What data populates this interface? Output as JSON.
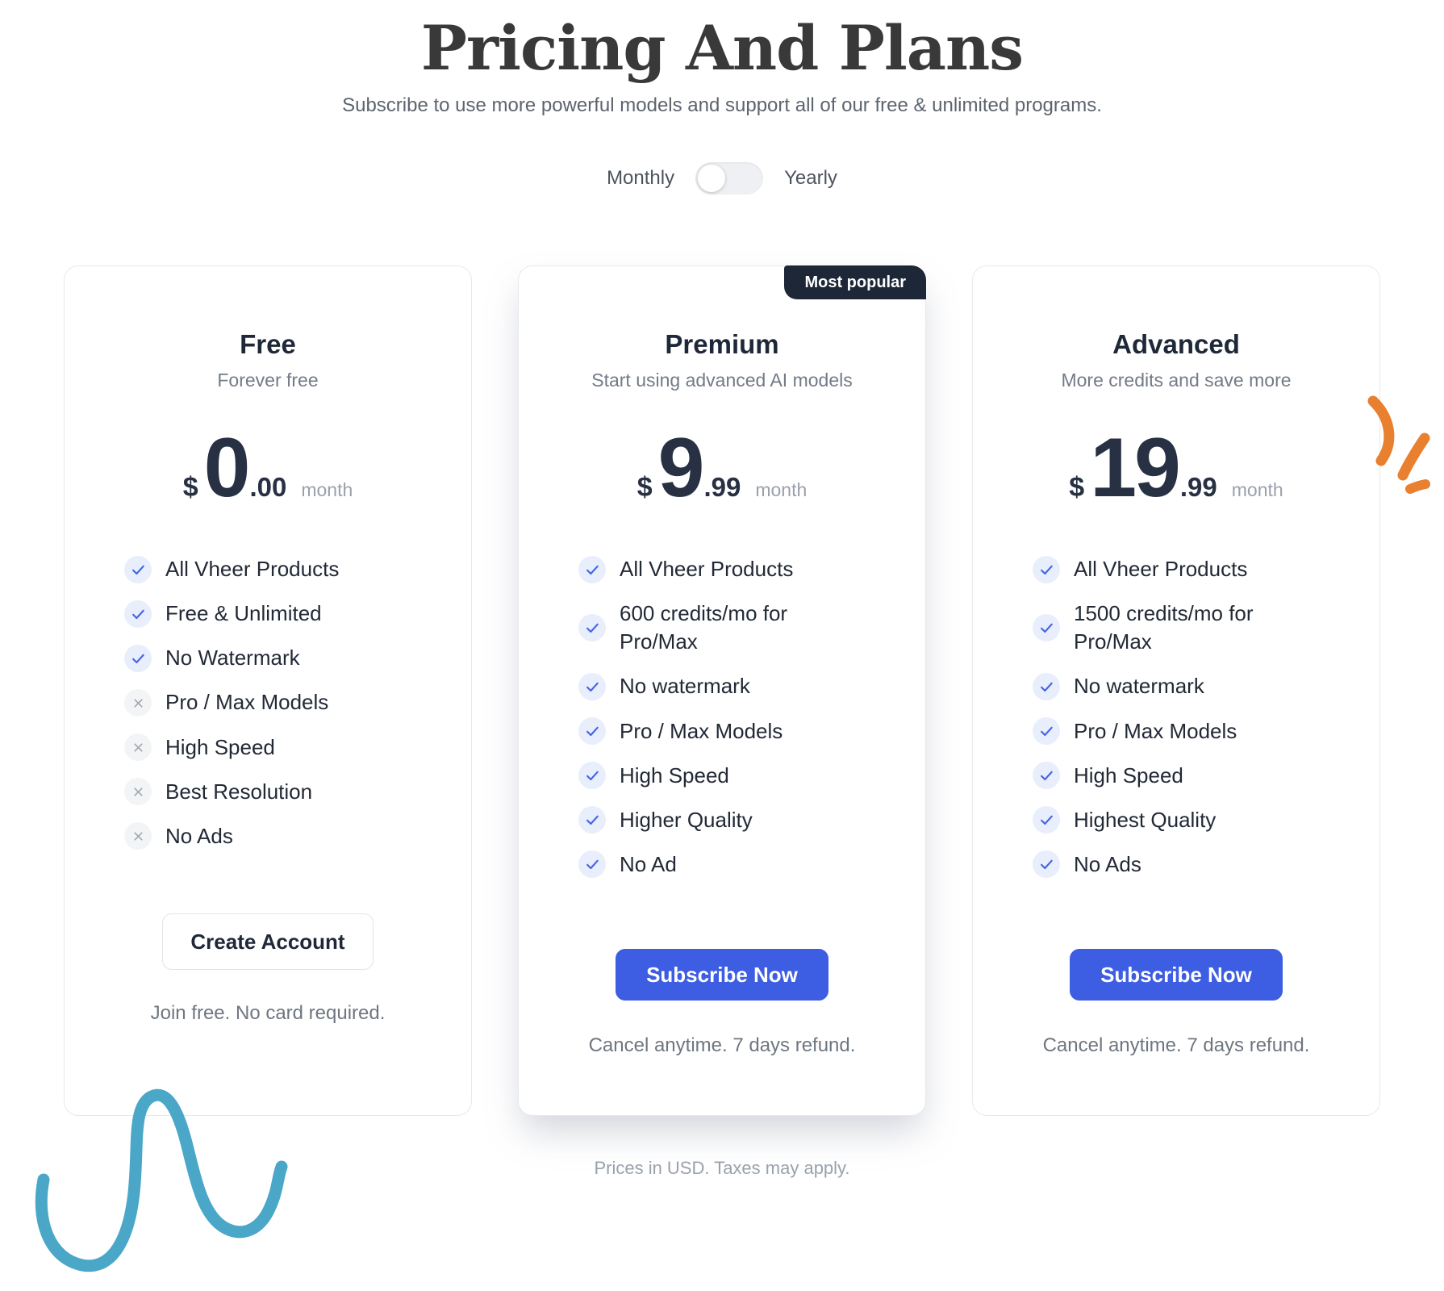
{
  "page": {
    "title": "Pricing And Plans",
    "subtitle": "Subscribe to use more powerful models and support all of our free & unlimited programs.",
    "footer_note": "Prices in USD. Taxes may apply."
  },
  "billing_toggle": {
    "monthly_label": "Monthly",
    "yearly_label": "Yearly",
    "selected": "Monthly"
  },
  "colors": {
    "accent_blue": "#3d5de2",
    "badge_bg": "#1d2737",
    "check_blue": "#4465e6",
    "check_bg": "#e9eefc",
    "cross_gray": "#9aa1aa",
    "cross_bg": "#f2f4f6",
    "decoration_teal": "#4ba7c8",
    "decoration_orange": "#e8802f"
  },
  "plans": [
    {
      "name": "Free",
      "tagline": "Forever free",
      "currency": "$",
      "price_int": "0",
      "price_dec": ".00",
      "period": "month",
      "badge": null,
      "highlighted": false,
      "features": [
        {
          "label": "All Vheer Products",
          "included": true
        },
        {
          "label": "Free & Unlimited",
          "included": true
        },
        {
          "label": "No Watermark",
          "included": true
        },
        {
          "label": "Pro / Max Models",
          "included": false
        },
        {
          "label": "High Speed",
          "included": false
        },
        {
          "label": "Best Resolution",
          "included": false
        },
        {
          "label": "No Ads",
          "included": false
        }
      ],
      "cta": {
        "label": "Create Account",
        "style": "secondary"
      },
      "note": "Join free. No card required."
    },
    {
      "name": "Premium",
      "tagline": "Start using advanced AI models",
      "currency": "$",
      "price_int": "9",
      "price_dec": ".99",
      "period": "month",
      "badge": "Most popular",
      "highlighted": true,
      "features": [
        {
          "label": "All Vheer Products",
          "included": true
        },
        {
          "label": "600 credits/mo for\nPro/Max",
          "included": true
        },
        {
          "label": "No watermark",
          "included": true
        },
        {
          "label": "Pro / Max Models",
          "included": true
        },
        {
          "label": "High Speed",
          "included": true
        },
        {
          "label": "Higher Quality",
          "included": true
        },
        {
          "label": "No Ad",
          "included": true
        }
      ],
      "cta": {
        "label": "Subscribe Now",
        "style": "primary"
      },
      "note": "Cancel anytime. 7 days refund."
    },
    {
      "name": "Advanced",
      "tagline": "More credits and save more",
      "currency": "$",
      "price_int": "19",
      "price_dec": ".99",
      "period": "month",
      "badge": null,
      "highlighted": false,
      "features": [
        {
          "label": "All Vheer Products",
          "included": true
        },
        {
          "label": "1500 credits/mo for\nPro/Max",
          "included": true
        },
        {
          "label": "No watermark",
          "included": true
        },
        {
          "label": "Pro / Max Models",
          "included": true
        },
        {
          "label": "High Speed",
          "included": true
        },
        {
          "label": "Highest Quality",
          "included": true
        },
        {
          "label": "No Ads",
          "included": true
        }
      ],
      "cta": {
        "label": "Subscribe Now",
        "style": "primary"
      },
      "note": "Cancel anytime. 7 days refund."
    }
  ]
}
